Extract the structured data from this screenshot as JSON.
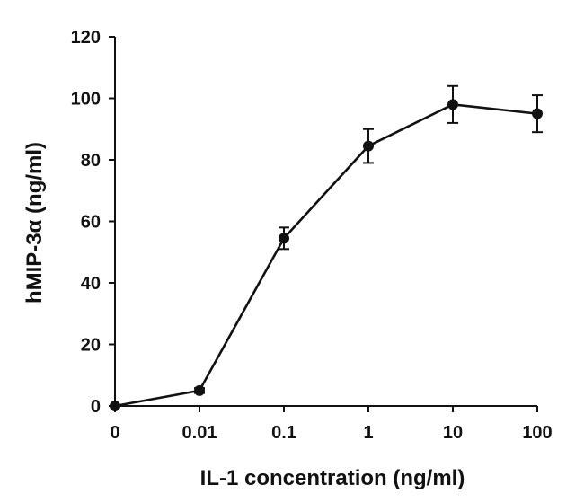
{
  "chart_data": {
    "type": "line",
    "xlabel": "IL-1 concentration (ng/ml)",
    "ylabel": "hMIP-3α (ng/ml)",
    "categories": [
      "0",
      "0.01",
      "0.1",
      "1",
      "10",
      "100"
    ],
    "x_scale": "categorical (log-spaced doses)",
    "ylim": [
      0,
      120
    ],
    "yticks": [
      "0",
      "20",
      "40",
      "60",
      "80",
      "100",
      "120"
    ],
    "grid": false,
    "legend": "none",
    "series": [
      {
        "values": [
          0,
          5,
          54.5,
          84.5,
          98,
          95
        ],
        "errors": [
          0,
          0.8,
          3.5,
          5.5,
          6,
          6
        ],
        "marker": "circle",
        "color": "#111111"
      }
    ]
  }
}
